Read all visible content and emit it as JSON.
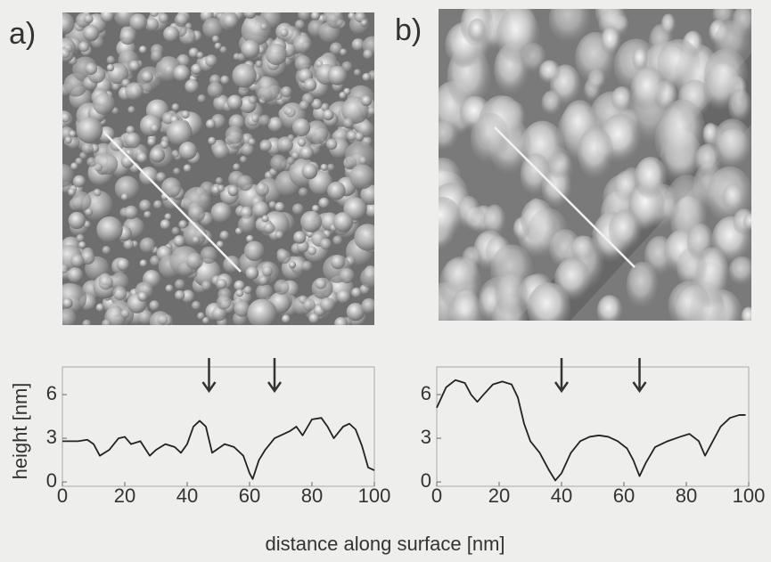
{
  "xlabel": "distance along surface [nm]",
  "chart_data": [
    {
      "type": "line",
      "panel_label": "a)",
      "ylabel": "height [nm]",
      "x": [
        0,
        2,
        5,
        8,
        10,
        12,
        15,
        18,
        20,
        22,
        25,
        28,
        30,
        33,
        36,
        38,
        40,
        42,
        44,
        46,
        48,
        50,
        52,
        55,
        58,
        60,
        61,
        63,
        65,
        68,
        70,
        73,
        75,
        77,
        80,
        83,
        85,
        87,
        90,
        92,
        94,
        96,
        98,
        100
      ],
      "series": [
        {
          "color": "#222222",
          "values": [
            2.8,
            2.8,
            2.8,
            2.9,
            2.6,
            1.8,
            2.2,
            3.0,
            3.1,
            2.6,
            2.8,
            1.8,
            2.2,
            2.6,
            2.4,
            2.0,
            2.6,
            3.8,
            4.2,
            3.8,
            2.0,
            2.3,
            2.6,
            2.4,
            1.8,
            0.6,
            0.2,
            1.5,
            2.2,
            3.0,
            3.2,
            3.5,
            3.8,
            3.2,
            4.3,
            4.4,
            3.8,
            3.0,
            3.8,
            4.0,
            3.6,
            2.5,
            1.0,
            0.8
          ]
        }
      ],
      "arrows_x": [
        47,
        68
      ],
      "xlim": [
        0,
        100
      ],
      "xticks": [
        0,
        20,
        40,
        60,
        80,
        100
      ],
      "ylim": [
        -0.3,
        7.9
      ],
      "yticks": [
        0,
        3,
        6
      ]
    },
    {
      "type": "line",
      "panel_label": "b)",
      "x": [
        0,
        3,
        6,
        9,
        11,
        13,
        15,
        18,
        21,
        24,
        26,
        28,
        30,
        33,
        36,
        38,
        40,
        43,
        46,
        49,
        52,
        55,
        58,
        61,
        63,
        65,
        67,
        70,
        74,
        78,
        81,
        84,
        86,
        88,
        91,
        94,
        97,
        99
      ],
      "series": [
        {
          "color": "#222222",
          "values": [
            5.1,
            6.5,
            7.0,
            6.8,
            6.0,
            5.5,
            6.0,
            6.7,
            6.9,
            6.7,
            5.8,
            4.0,
            2.8,
            2.0,
            0.8,
            0.1,
            0.6,
            2.0,
            2.8,
            3.1,
            3.2,
            3.1,
            2.8,
            2.3,
            1.5,
            0.4,
            1.3,
            2.4,
            2.8,
            3.1,
            3.3,
            2.8,
            1.8,
            2.6,
            3.8,
            4.4,
            4.6,
            4.6
          ]
        }
      ],
      "arrows_x": [
        40,
        65
      ],
      "xlim": [
        0,
        100
      ],
      "xticks": [
        0,
        20,
        40,
        60,
        80,
        100
      ],
      "ylim": [
        -0.3,
        7.9
      ],
      "yticks": [
        0,
        3,
        6
      ]
    }
  ]
}
